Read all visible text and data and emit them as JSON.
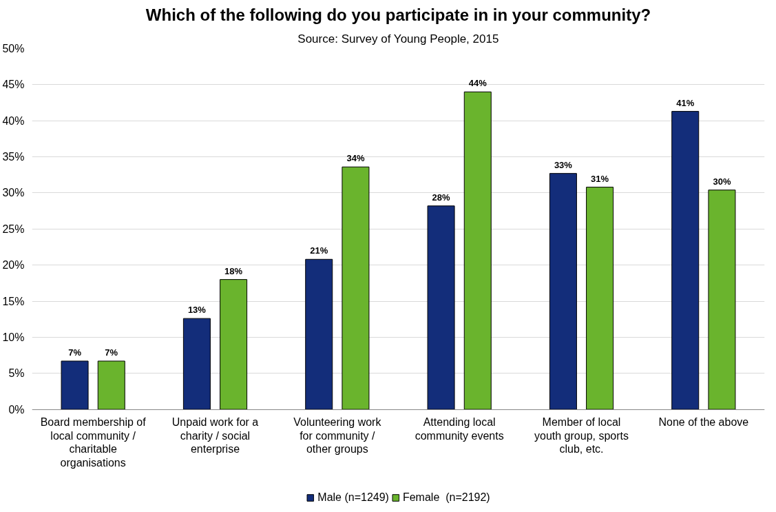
{
  "chart_data": {
    "type": "bar",
    "title": "Which of the following do you participate in in your community?",
    "subtitle": "Source: Survey of Young People, 2015",
    "categories": [
      "Board membership of local community / charitable organisations",
      "Unpaid work for a charity / social enterprise",
      "Volunteering work for community / other groups",
      "Attending local community events",
      "Member of local youth group, sports club, etc.",
      "None of the above"
    ],
    "series": [
      {
        "name": "Male (n=1249)",
        "color": "#132d7a",
        "values": [
          6.7,
          12.6,
          20.8,
          28.2,
          32.7,
          41.3
        ],
        "value_labels": [
          "7%",
          "13%",
          "21%",
          "28%",
          "33%",
          "41%"
        ]
      },
      {
        "name": "Female  (n=2192)",
        "color": "#6ab42d",
        "values": [
          6.7,
          18.0,
          33.6,
          44.0,
          30.8,
          30.4
        ],
        "value_labels": [
          "7%",
          "18%",
          "34%",
          "44%",
          "31%",
          "30%"
        ]
      }
    ],
    "ylim": [
      0,
      50
    ],
    "yticks": [
      {
        "value": 0,
        "label": "0%"
      },
      {
        "value": 5,
        "label": "5%"
      },
      {
        "value": 10,
        "label": "10%"
      },
      {
        "value": 15,
        "label": "15%"
      },
      {
        "value": 20,
        "label": "20%"
      },
      {
        "value": 25,
        "label": "25%"
      },
      {
        "value": 30,
        "label": "30%"
      },
      {
        "value": 35,
        "label": "35%"
      },
      {
        "value": 40,
        "label": "40%"
      },
      {
        "value": 45,
        "label": "45%"
      },
      {
        "value": 50,
        "label": "50%"
      }
    ],
    "grid": "y",
    "legend": "bottom"
  }
}
